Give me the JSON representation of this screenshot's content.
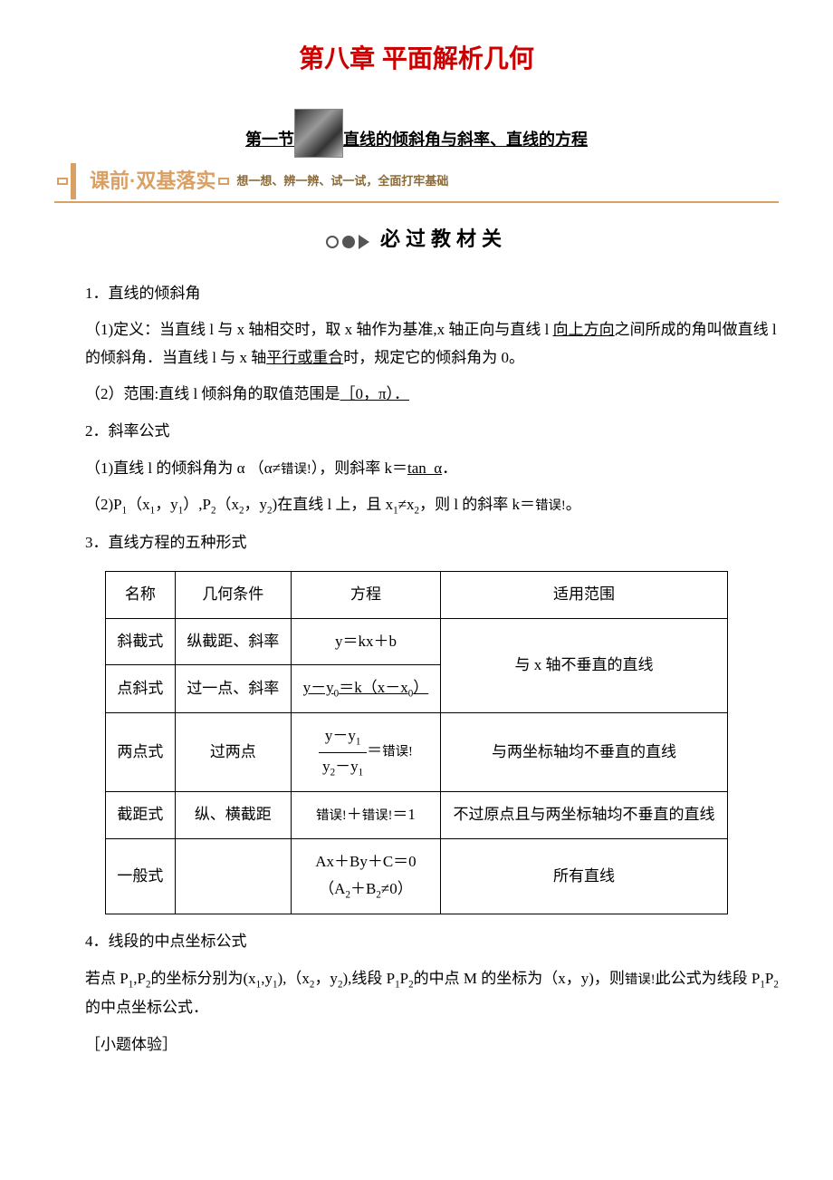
{
  "chapter_title": "第八章 平面解析几何",
  "section_prefix": "第一节",
  "section_title": "直线的倾斜角与斜率、直线的方程",
  "banner": {
    "left": "课前·双基落实",
    "right": "想一想、辨一辨、试一试，全面打牢基础"
  },
  "tag": "必过教材关",
  "paragraphs": {
    "p1": "1．直线的倾斜角",
    "p2a": "（1)定义：当直线 l 与 x 轴相交时，取 x 轴作为基准,x 轴正向与直线 l ",
    "p2u": "向上方向",
    "p2b": "之间所成的角叫做直线 l 的倾斜角．当直线 l 与 x 轴",
    "p2u2": "平行或重合",
    "p2c": "时，规定它的倾斜角为 0。",
    "p3a": "（2）范围:直线 l 倾斜角的取值范围是",
    "p3u": "［0，π）．",
    "p4": "2．斜率公式",
    "p5a": "（1)直线 l 的倾斜角为 α （α≠",
    "p5err": "错误!",
    "p5b": "），则斜率 k＝",
    "p5u": "tan_α",
    "p5c": "．",
    "p6a": "（2)P",
    "p6b": "（x",
    "p6c": "，y",
    "p6d": "）,P",
    "p6e": "（x",
    "p6f": "，y",
    "p6g": ")在直线 l 上，且 x",
    "p6h": "≠x",
    "p6i": "，则 l 的斜率 k＝",
    "p6err": "错误!",
    "p6j": "。",
    "p7": "3．直线方程的五种形式",
    "p8": "4．线段的中点坐标公式",
    "p9a": "若点 P",
    "p9b": ",P",
    "p9c": "的坐标分别为(x",
    "p9d": ",y",
    "p9e": "),（x",
    "p9f": "，y",
    "p9g": "),线段 P",
    "p9h": "P",
    "p9i": "的中点 M 的坐标为（x，y)，则",
    "p9err": "错误!",
    "p9j": "此公式为线段 P",
    "p9k": "P",
    "p9l": "的中点坐标公式．",
    "p10": "［小题体验］"
  },
  "subs": {
    "s1": "1",
    "s2": "2",
    "s0": "0"
  },
  "table": {
    "headers": [
      "名称",
      "几何条件",
      "方程",
      "适用范围"
    ],
    "rows": [
      {
        "name": "斜截式",
        "cond": "纵截距、斜率",
        "eq": "y＝kx＋b",
        "scope": "与 x 轴不垂直的直线"
      },
      {
        "name": "点斜式",
        "cond": "过一点、斜率",
        "eq_u": "y－y",
        "eq_sub0a": "0",
        "eq_mid": "＝k（x－x",
        "eq_sub0b": "0",
        "eq_end": "）"
      },
      {
        "name": "两点式",
        "cond": "过两点",
        "frac_num_a": "y－y",
        "frac_num_sub": "1",
        "frac_den_a": "y",
        "frac_den_sub1": "2",
        "frac_den_mid": "－y",
        "frac_den_sub2": "1",
        "eq_after": "＝",
        "eq_err": "错误!",
        "scope": "与两坐标轴均不垂直的直线"
      },
      {
        "name": "截距式",
        "cond": "纵、横截距",
        "eq_a": "错误!",
        "eq_plus": "＋",
        "eq_b": "错误!",
        "eq_eq": "＝1",
        "scope": "不过原点且与两坐标轴均不垂直的直线"
      },
      {
        "name": "一般式",
        "cond": "",
        "eq_l1": "Ax＋By＋C＝0",
        "eq_l2a": "（A",
        "eq_l2sub1": "2",
        "eq_l2b": "＋B",
        "eq_l2sub2": "2",
        "eq_l2c": "≠0）",
        "scope": "所有直线"
      }
    ]
  },
  "colors": {
    "red": "#cc0000",
    "brown": "#d9a066",
    "text": "#000000",
    "bg": "#ffffff"
  }
}
